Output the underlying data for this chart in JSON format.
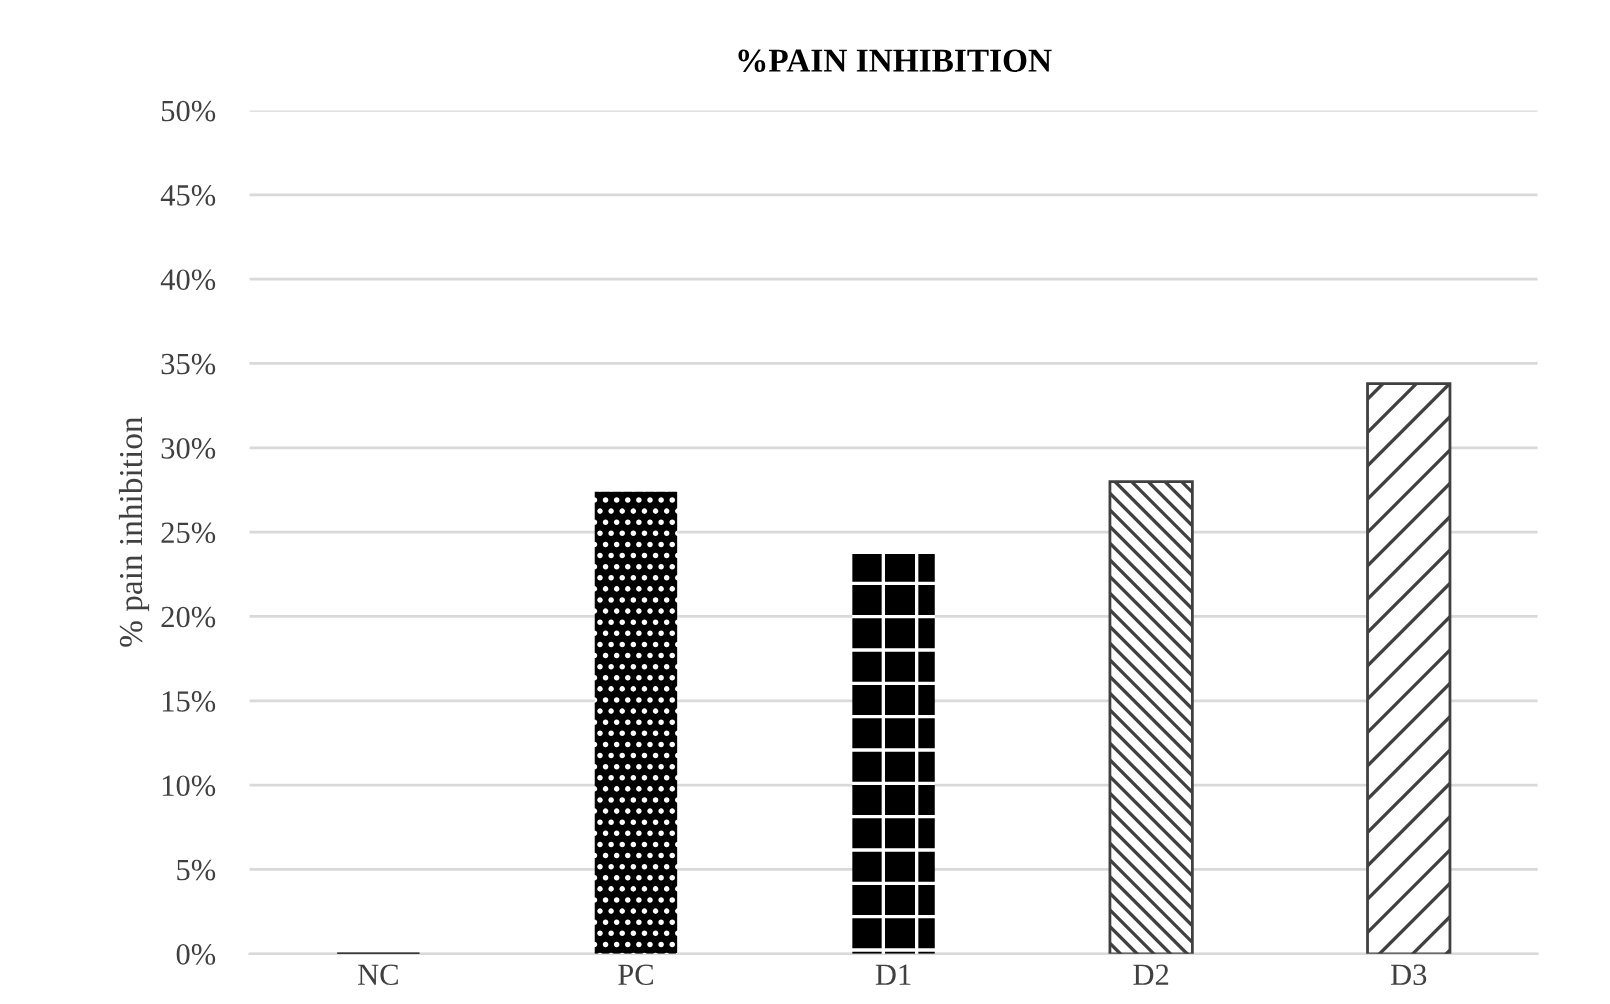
{
  "chart_data": {
    "type": "bar",
    "title": "%PAIN INHIBITION",
    "ylabel": "% pain inhibition",
    "categories": [
      "NC",
      "PC",
      "D1",
      "D2",
      "D3"
    ],
    "values": [
      0,
      27.4,
      23.7,
      28.0,
      33.8
    ],
    "colors": [
      "#000000",
      "#000000",
      "#000000",
      "#404040",
      "#404040"
    ],
    "ylim": [
      0,
      50
    ],
    "yticks": [
      {
        "value": 0,
        "label": "0%"
      },
      {
        "value": 5,
        "label": "5%"
      },
      {
        "value": 10,
        "label": "10%"
      },
      {
        "value": 15,
        "label": "15%"
      },
      {
        "value": 20,
        "label": "20%"
      },
      {
        "value": 25,
        "label": "25%"
      },
      {
        "value": 30,
        "label": "30%"
      },
      {
        "value": 35,
        "label": "35%"
      },
      {
        "value": 40,
        "label": "40%"
      },
      {
        "value": 45,
        "label": "45%"
      },
      {
        "value": 50,
        "label": "50%"
      }
    ],
    "grid": "y"
  }
}
